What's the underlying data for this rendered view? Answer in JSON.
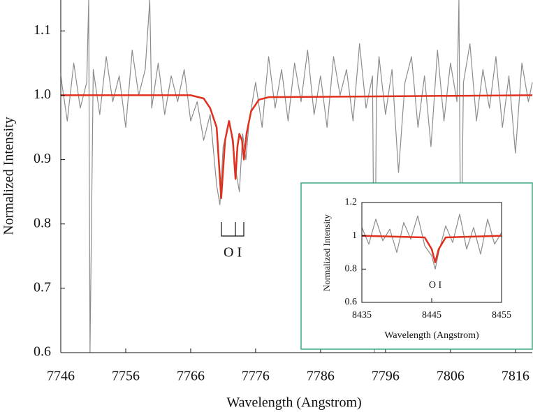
{
  "chart_data": [
    {
      "type": "line",
      "x_label": "Wavelength (Angstrom)",
      "y_label": "Normalized Intensity",
      "annotation": "O I",
      "xlim": [
        7746,
        7818.6
      ],
      "ylim": [
        0.6,
        1.148
      ],
      "xticks": [
        7746,
        7756,
        7766,
        7776,
        7786,
        7796,
        7806,
        7816
      ],
      "yticks": [
        0.6,
        0.7,
        0.8,
        0.9,
        {
          "value": 1,
          "label": "1.0"
        },
        1.1
      ],
      "series": [
        {
          "color": "#8c8c8c",
          "x": [
            7746,
            7747,
            7748,
            7749,
            7750,
            7750.3,
            7750.5,
            7751,
            7752,
            7753,
            7754,
            7755,
            7756,
            7757,
            7758,
            7759,
            7759.7,
            7760,
            7761,
            7762,
            7763,
            7764,
            7765,
            7766,
            7767,
            7768,
            7769,
            7770,
            7770.5,
            7771,
            7772,
            7773,
            7773.5,
            7774,
            7774.5,
            7775,
            7776,
            7777,
            7778,
            7779,
            7780,
            7781,
            7782,
            7783,
            7784,
            7785,
            7786,
            7787,
            7788,
            7789,
            7790,
            7791,
            7792,
            7793,
            7794,
            7794.3,
            7794.6,
            7795,
            7796,
            7797,
            7798,
            7799,
            7800,
            7801,
            7802,
            7803,
            7804,
            7805,
            7806,
            7807,
            7807.3,
            7807.6,
            7808,
            7809,
            7810,
            7811,
            7812,
            7813,
            7814,
            7815,
            7816,
            7817,
            7818,
            7818.6
          ],
          "values": [
            1.03,
            0.96,
            1.05,
            0.98,
            1.02,
            1.148,
            0.6,
            1.04,
            0.97,
            1.06,
            0.99,
            1.03,
            0.95,
            1.07,
            1.0,
            1.04,
            1.148,
            0.98,
            1.05,
            0.97,
            1.03,
            0.99,
            1.04,
            0.96,
            0.99,
            0.93,
            0.97,
            0.86,
            0.83,
            0.92,
            0.96,
            0.88,
            0.85,
            0.94,
            0.9,
            0.96,
            1.02,
            0.95,
            1.06,
            0.98,
            1.04,
            0.96,
            1.05,
            0.99,
            1.07,
            0.97,
            1.03,
            0.95,
            1.06,
            1.0,
            1.04,
            0.96,
            1.08,
            0.98,
            1.03,
            0.6,
            1.0,
            1.06,
            0.97,
            1.04,
            0.88,
            1.02,
            1.06,
            0.95,
            1.03,
            0.92,
            1.07,
            0.96,
            1.05,
            0.99,
            1.148,
            0.71,
            1.02,
            1.08,
            0.96,
            1.04,
            0.98,
            1.06,
            0.95,
            1.03,
            0.91,
            1.05,
            0.99,
            1.02
          ]
        },
        {
          "color": "#e0301e",
          "x": [
            7746,
            7766,
            7768,
            7769,
            7770,
            7770.7,
            7771.3,
            7771.9,
            7772.5,
            7772.9,
            7773.2,
            7773.5,
            7773.9,
            7774.2,
            7774.6,
            7775.3,
            7776.5,
            7778,
            7818.6
          ],
          "values": [
            1.0,
            1.0,
            0.995,
            0.98,
            0.95,
            0.84,
            0.93,
            0.96,
            0.93,
            0.87,
            0.92,
            0.94,
            0.93,
            0.9,
            0.94,
            0.975,
            0.993,
            0.997,
            1.0
          ]
        }
      ]
    },
    {
      "type": "line",
      "x_label": "Wavelength (Angstrom)",
      "y_label": "Normalized Intensity",
      "annotation": "O I",
      "xlim": [
        8435,
        8455
      ],
      "ylim": [
        0.6,
        1.2
      ],
      "xticks": [
        8435,
        8445,
        8455
      ],
      "yticks": [
        0.6,
        0.8,
        1,
        1.2
      ],
      "series": [
        {
          "color": "#8c8c8c",
          "x": [
            8435,
            8436,
            8437,
            8438,
            8439,
            8440,
            8441,
            8442,
            8443,
            8444,
            8445,
            8445.5,
            8446,
            8447,
            8448,
            8449,
            8450,
            8451,
            8452,
            8453,
            8454,
            8455
          ],
          "values": [
            1.05,
            0.95,
            1.1,
            0.97,
            1.04,
            0.9,
            1.08,
            0.98,
            1.12,
            0.94,
            0.88,
            0.8,
            0.9,
            1.06,
            0.96,
            1.13,
            0.92,
            1.05,
            0.89,
            1.1,
            0.95,
            1.02
          ]
        },
        {
          "color": "#e0301e",
          "x": [
            8435,
            8444,
            8445,
            8445.5,
            8446,
            8447,
            8455
          ],
          "values": [
            1.0,
            0.99,
            0.92,
            0.84,
            0.92,
            0.99,
            1.0
          ]
        }
      ]
    }
  ]
}
